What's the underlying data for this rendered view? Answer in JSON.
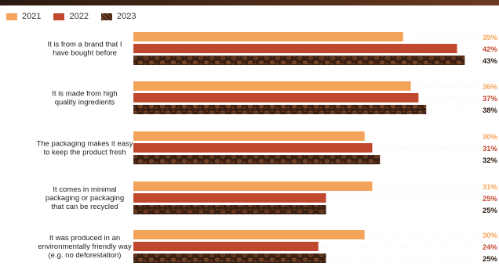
{
  "legend": {
    "items": [
      {
        "label": "2021",
        "color": "#f4a45a"
      },
      {
        "label": "2022",
        "color": "#c0482f"
      },
      {
        "label": "2023",
        "color": "#5a2f1c"
      }
    ]
  },
  "colors": {
    "s2021": "#f4a45a",
    "s2022": "#c0482f",
    "bean_dark": "#3a1f12",
    "bean_mid": "#6b3a20",
    "val2021": "#f4a45a",
    "val2022": "#c0482f",
    "val2023": "#2a1a10",
    "guide": "#d8d8d8"
  },
  "chart_data": {
    "type": "bar",
    "orientation": "horizontal",
    "categories": [
      [
        "It is from a brand that I",
        "have bought before"
      ],
      [
        "It is made from high",
        "quality ingredients"
      ],
      [
        "The packaging makes it easy",
        "to keep the product fresh"
      ],
      [
        "It comes in minimal",
        "packaging or packaging",
        "that can be recycled"
      ],
      [
        "It was produced in an",
        "environmentally friendly way",
        "(e.g. no deforestation)"
      ]
    ],
    "series": [
      {
        "name": "2021",
        "values": [
          35,
          36,
          30,
          31,
          30
        ]
      },
      {
        "name": "2022",
        "values": [
          42,
          37,
          31,
          25,
          24
        ]
      },
      {
        "name": "2023",
        "values": [
          43,
          38,
          32,
          25,
          25
        ]
      }
    ],
    "value_suffix": "%",
    "xlim": [
      0,
      45
    ],
    "legend_position": "top-left"
  }
}
